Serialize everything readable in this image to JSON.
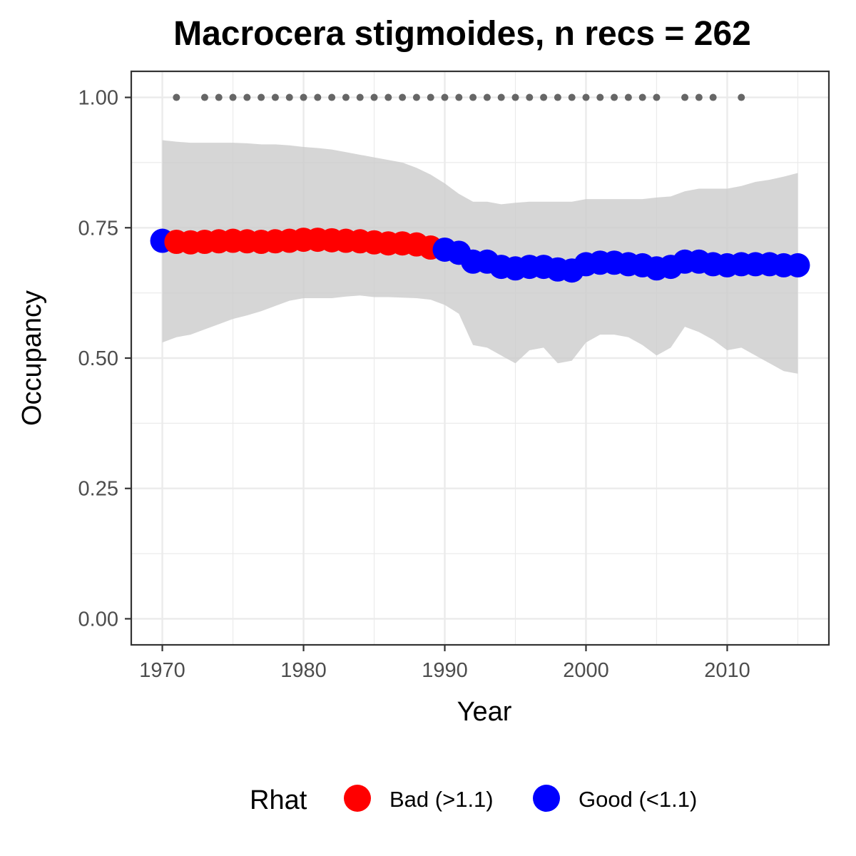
{
  "chart_data": {
    "type": "line",
    "title": "Macrocera stigmoides, n recs = 262",
    "xlabel": "Year",
    "ylabel": "Occupancy",
    "xlim": [
      1967.8,
      2017.2
    ],
    "ylim": [
      -0.05,
      1.05
    ],
    "x_ticks": [
      1970,
      1980,
      1990,
      2000,
      2010
    ],
    "x_tick_labels": [
      "1970",
      "1980",
      "1990",
      "2000",
      "2010"
    ],
    "y_ticks": [
      0,
      0.25,
      0.5,
      0.75,
      1
    ],
    "y_tick_labels": [
      "0.00",
      "0.25",
      "0.50",
      "0.75",
      "1.00"
    ],
    "grid": true,
    "legend": {
      "title": "Rhat",
      "position": "bottom",
      "items": [
        {
          "label": "Bad (>1.1)",
          "color": "#ff0000"
        },
        {
          "label": "Good (<1.1)",
          "color": "#0000ff"
        }
      ]
    },
    "colors": {
      "bad": "#ff0000",
      "good": "#0000ff",
      "ribbon": "#cccccc",
      "record": "#666666"
    },
    "x": [
      1970,
      1971,
      1972,
      1973,
      1974,
      1975,
      1976,
      1977,
      1978,
      1979,
      1980,
      1981,
      1982,
      1983,
      1984,
      1985,
      1986,
      1987,
      1988,
      1989,
      1990,
      1991,
      1992,
      1993,
      1994,
      1995,
      1996,
      1997,
      1998,
      1999,
      2000,
      2001,
      2002,
      2003,
      2004,
      2005,
      2006,
      2007,
      2008,
      2009,
      2010,
      2011,
      2012,
      2013,
      2014,
      2015
    ],
    "occupancy": [
      0.725,
      0.723,
      0.722,
      0.723,
      0.724,
      0.725,
      0.724,
      0.723,
      0.724,
      0.725,
      0.727,
      0.727,
      0.726,
      0.725,
      0.724,
      0.722,
      0.72,
      0.72,
      0.718,
      0.712,
      0.708,
      0.702,
      0.685,
      0.685,
      0.675,
      0.672,
      0.675,
      0.675,
      0.67,
      0.668,
      0.68,
      0.683,
      0.683,
      0.68,
      0.678,
      0.672,
      0.675,
      0.685,
      0.685,
      0.68,
      0.678,
      0.68,
      0.68,
      0.68,
      0.678,
      0.678
    ],
    "rhat": [
      "Good",
      "Bad",
      "Bad",
      "Bad",
      "Bad",
      "Bad",
      "Bad",
      "Bad",
      "Bad",
      "Bad",
      "Bad",
      "Bad",
      "Bad",
      "Bad",
      "Bad",
      "Bad",
      "Bad",
      "Bad",
      "Bad",
      "Bad",
      "Good",
      "Good",
      "Good",
      "Good",
      "Good",
      "Good",
      "Good",
      "Good",
      "Good",
      "Good",
      "Good",
      "Good",
      "Good",
      "Good",
      "Good",
      "Good",
      "Good",
      "Good",
      "Good",
      "Good",
      "Good",
      "Good",
      "Good",
      "Good",
      "Good",
      "Good"
    ],
    "lower": [
      0.53,
      0.54,
      0.545,
      0.555,
      0.565,
      0.575,
      0.582,
      0.59,
      0.6,
      0.61,
      0.615,
      0.615,
      0.615,
      0.618,
      0.62,
      0.617,
      0.617,
      0.616,
      0.615,
      0.612,
      0.602,
      0.585,
      0.525,
      0.52,
      0.505,
      0.49,
      0.515,
      0.52,
      0.49,
      0.495,
      0.53,
      0.545,
      0.545,
      0.54,
      0.525,
      0.505,
      0.52,
      0.56,
      0.55,
      0.535,
      0.515,
      0.52,
      0.505,
      0.49,
      0.475,
      0.47
    ],
    "upper": [
      0.918,
      0.915,
      0.913,
      0.913,
      0.913,
      0.913,
      0.912,
      0.91,
      0.91,
      0.908,
      0.905,
      0.903,
      0.9,
      0.895,
      0.89,
      0.885,
      0.88,
      0.875,
      0.865,
      0.852,
      0.835,
      0.815,
      0.8,
      0.8,
      0.795,
      0.798,
      0.8,
      0.8,
      0.8,
      0.8,
      0.805,
      0.805,
      0.805,
      0.805,
      0.805,
      0.808,
      0.81,
      0.82,
      0.825,
      0.825,
      0.825,
      0.83,
      0.838,
      0.842,
      0.848,
      0.855
    ],
    "record_years": [
      1971,
      1973,
      1974,
      1975,
      1976,
      1977,
      1978,
      1979,
      1980,
      1981,
      1982,
      1983,
      1984,
      1985,
      1986,
      1987,
      1988,
      1989,
      1990,
      1991,
      1992,
      1993,
      1994,
      1995,
      1996,
      1997,
      1998,
      1999,
      2000,
      2001,
      2002,
      2003,
      2004,
      2005,
      2007,
      2008,
      2009,
      2011
    ],
    "record_value": 1
  }
}
